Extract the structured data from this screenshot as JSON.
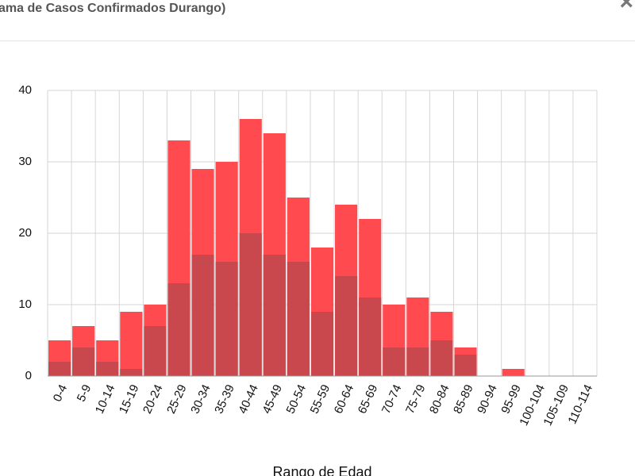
{
  "header": {
    "title": "ama de Casos Confirmados Durango)",
    "close": "×"
  },
  "chart_data": {
    "type": "bar",
    "overlap": true,
    "x_label": "Rango de Edad",
    "categories": [
      "0-4",
      "5-9",
      "10-14",
      "15-19",
      "20-24",
      "25-29",
      "30-34",
      "35-39",
      "40-44",
      "45-49",
      "50-54",
      "55-59",
      "60-64",
      "65-69",
      "70-74",
      "75-79",
      "80-84",
      "85-89",
      "90-94",
      "95-99",
      "100-104",
      "105-109",
      "110-114"
    ],
    "series": [
      {
        "color": "#ff4a50",
        "values": [
          5,
          7,
          5,
          9,
          10,
          33,
          29,
          30,
          36,
          34,
          25,
          18,
          24,
          22,
          10,
          11,
          9,
          4,
          0,
          1,
          0,
          0,
          0
        ]
      },
      {
        "color": "#c9484d",
        "values": [
          2,
          4,
          2,
          1,
          7,
          13,
          17,
          16,
          20,
          17,
          16,
          9,
          14,
          11,
          4,
          4,
          5,
          3,
          0,
          0,
          0,
          0,
          0
        ]
      }
    ],
    "ylim": [
      0,
      40
    ],
    "yticks": [
      0,
      10,
      20,
      30,
      40
    ],
    "grid": true
  }
}
